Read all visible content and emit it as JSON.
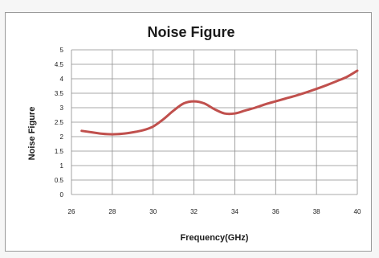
{
  "chart_data": {
    "type": "line",
    "title": "Noise Figure",
    "xlabel": "Frequency(GHz)",
    "ylabel": "Noise Figure",
    "xlim": [
      26,
      40
    ],
    "ylim": [
      0,
      5
    ],
    "x_ticks": [
      "26",
      "28",
      "30",
      "32",
      "34",
      "36",
      "38",
      "40"
    ],
    "y_ticks": [
      "0",
      "0.5",
      "1",
      "1.5",
      "2",
      "2.5",
      "3",
      "3.5",
      "4",
      "4.5",
      "5"
    ],
    "grid": true,
    "series": [
      {
        "color": "#c0504d",
        "x": [
          26.5,
          27,
          27.5,
          28,
          28.5,
          29,
          29.5,
          30,
          30.5,
          31,
          31.5,
          32,
          32.5,
          33,
          33.5,
          34,
          34.5,
          35,
          35.5,
          36,
          36.5,
          37,
          37.5,
          38,
          38.5,
          39,
          39.5,
          40
        ],
        "y": [
          2.2,
          2.15,
          2.1,
          2.08,
          2.1,
          2.15,
          2.22,
          2.35,
          2.6,
          2.9,
          3.15,
          3.22,
          3.15,
          2.95,
          2.8,
          2.8,
          2.9,
          3.0,
          3.12,
          3.22,
          3.32,
          3.42,
          3.53,
          3.65,
          3.78,
          3.92,
          4.07,
          4.28
        ]
      }
    ]
  }
}
